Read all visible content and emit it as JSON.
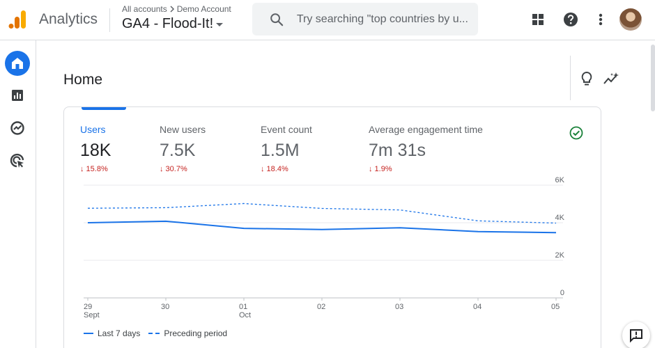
{
  "header": {
    "app_name": "Analytics",
    "breadcrumb_root": "All accounts",
    "breadcrumb_account": "Demo Account",
    "property": "GA4 - Flood-It!",
    "search_placeholder": "Try searching \"top countries by u..."
  },
  "icons": {
    "logo": "analytics-logo-icon",
    "search": "search-icon",
    "apps": "apps-grid-icon",
    "help": "help-icon",
    "more": "more-vert-icon",
    "nav": [
      "home-icon",
      "reports-icon",
      "explore-icon",
      "advertising-icon"
    ],
    "insights": "lightbulb-icon",
    "insights2": "sparkle-trend-icon",
    "check": "check-circle-icon",
    "feedback": "feedback-icon"
  },
  "colors": {
    "accent": "#1a73e8",
    "decrease": "#c5221f",
    "check": "#188038"
  },
  "page": {
    "title": "Home"
  },
  "metrics": [
    {
      "label": "Users",
      "value": "18K",
      "change": "↓ 15.8%"
    },
    {
      "label": "New users",
      "value": "7.5K",
      "change": "↓ 30.7%"
    },
    {
      "label": "Event count",
      "value": "1.5M",
      "change": "↓ 18.4%"
    },
    {
      "label": "Average engagement time",
      "value": "7m 31s",
      "change": "↓ 1.9%"
    }
  ],
  "chart_data": {
    "type": "line",
    "categories": [
      "29 Sept",
      "30",
      "01 Oct",
      "02",
      "03",
      "04",
      "05"
    ],
    "x_labels": [
      {
        "top": "29",
        "bottom": "Sept"
      },
      {
        "top": "30",
        "bottom": ""
      },
      {
        "top": "01",
        "bottom": "Oct"
      },
      {
        "top": "02",
        "bottom": ""
      },
      {
        "top": "03",
        "bottom": ""
      },
      {
        "top": "04",
        "bottom": ""
      },
      {
        "top": "05",
        "bottom": ""
      }
    ],
    "series": [
      {
        "name": "Last 7 days",
        "style": "solid",
        "values": [
          4000,
          4080,
          3700,
          3640,
          3730,
          3530,
          3470
        ]
      },
      {
        "name": "Preceding period",
        "style": "dashed",
        "values": [
          4770,
          4800,
          5020,
          4760,
          4680,
          4100,
          3980
        ]
      }
    ],
    "yticks": [
      {
        "value": 0,
        "label": "0"
      },
      {
        "value": 2000,
        "label": "2K"
      },
      {
        "value": 4000,
        "label": "4K"
      },
      {
        "value": 6000,
        "label": "6K"
      }
    ],
    "ylim": [
      0,
      6000
    ],
    "grid": true,
    "legend_position": "bottom-left"
  }
}
